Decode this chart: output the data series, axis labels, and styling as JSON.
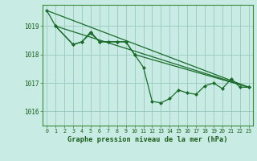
{
  "bg_color": "#c8ece4",
  "grid_color": "#9ecec4",
  "line_color": "#1a6b2a",
  "axis_label_color": "#1a5c1a",
  "tick_color": "#1a5c1a",
  "border_color": "#3a8a3a",
  "title": "Graphe pression niveau de la mer (hPa)",
  "xlim": [
    -0.5,
    23.5
  ],
  "ylim": [
    1015.5,
    1019.75
  ],
  "yticks": [
    1016,
    1017,
    1018,
    1019
  ],
  "xticks": [
    0,
    1,
    2,
    3,
    4,
    5,
    6,
    7,
    8,
    9,
    10,
    11,
    12,
    13,
    14,
    15,
    16,
    17,
    18,
    19,
    20,
    21,
    22,
    23
  ],
  "series1_x": [
    0,
    1,
    3,
    4,
    5,
    6,
    7,
    8,
    9,
    10,
    11,
    12,
    13,
    14,
    15,
    16,
    17,
    18,
    19,
    20,
    21,
    22,
    23
  ],
  "series1_y": [
    1019.55,
    1019.0,
    1018.35,
    1018.45,
    1018.75,
    1018.45,
    1018.45,
    1018.45,
    1018.45,
    1018.0,
    1017.55,
    1016.35,
    1016.3,
    1016.45,
    1016.75,
    1016.65,
    1016.6,
    1016.9,
    1017.0,
    1016.8,
    1017.15,
    1016.85,
    1016.85
  ],
  "series2_x": [
    1,
    3,
    4,
    5,
    6,
    7,
    8,
    9,
    10,
    23
  ],
  "series2_y": [
    1019.0,
    1018.35,
    1018.45,
    1018.8,
    1018.45,
    1018.45,
    1018.45,
    1018.45,
    1018.0,
    1016.85
  ],
  "series3_x": [
    1,
    23
  ],
  "series3_y": [
    1019.0,
    1016.85
  ],
  "series4_x": [
    0,
    23
  ],
  "series4_y": [
    1019.55,
    1016.85
  ]
}
